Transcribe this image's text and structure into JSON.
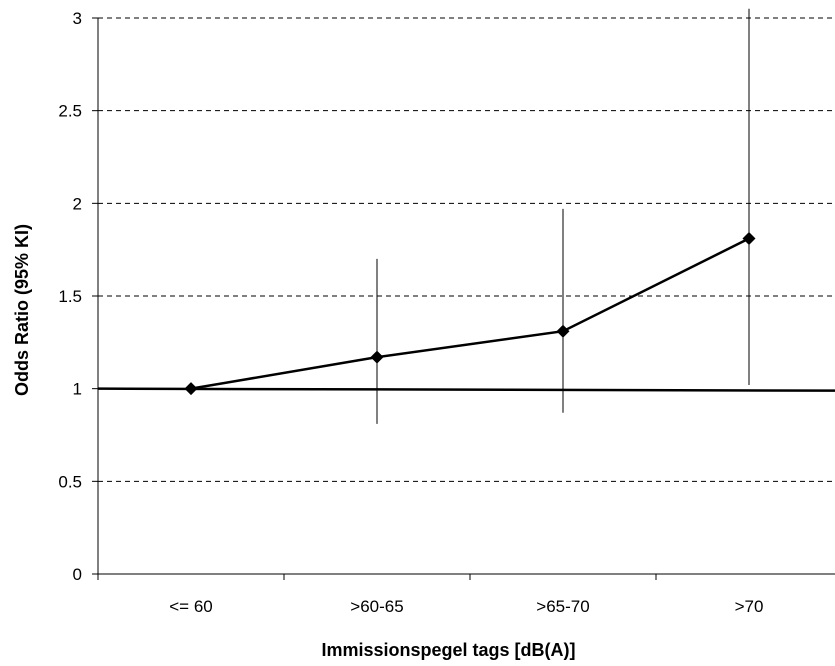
{
  "chart_data": {
    "type": "line",
    "xlabel": "Immissionspegel tags [dB(A)]",
    "ylabel": "Odds Ratio (95% KI)",
    "categories": [
      "<= 60",
      ">60-65",
      ">65-70",
      ">70"
    ],
    "ylim": [
      0,
      3
    ],
    "yticks": [
      0,
      0.5,
      1,
      1.5,
      2,
      2.5,
      3
    ],
    "ytick_labels": [
      "0",
      "0.5",
      "1",
      "1.5",
      "2",
      "2.5",
      "3"
    ],
    "grid": "horizontal dashed",
    "legend": "none",
    "reference_line": 1,
    "series": [
      {
        "values": [
          1.0,
          1.17,
          1.31,
          1.81
        ],
        "ci_lower": [
          1.0,
          0.81,
          0.87,
          1.02
        ],
        "ci_upper": [
          1.0,
          1.7,
          1.97,
          3.05
        ]
      }
    ],
    "color": "#000000"
  }
}
